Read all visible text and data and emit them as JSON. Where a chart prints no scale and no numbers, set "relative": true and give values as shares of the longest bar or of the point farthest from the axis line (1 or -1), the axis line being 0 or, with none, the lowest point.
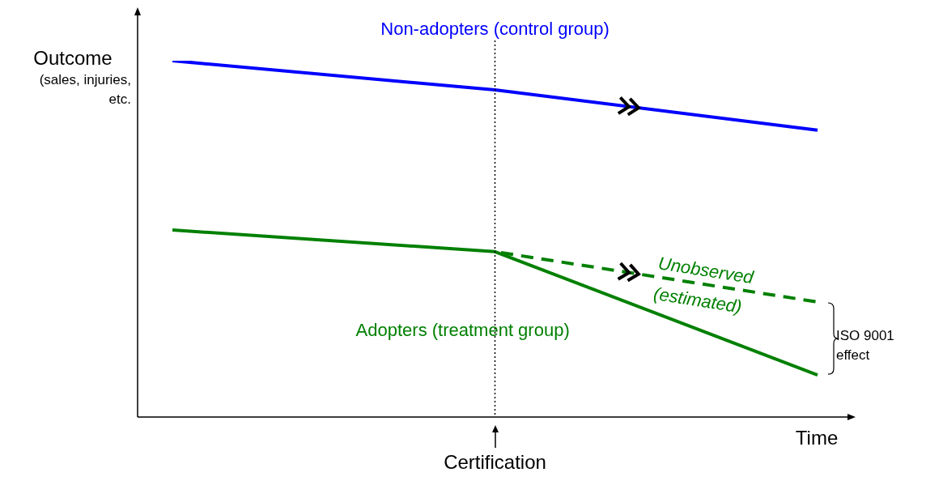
{
  "chart_data": {
    "type": "line",
    "relative": true,
    "xlabel": "Time",
    "ylabel": "Outcome\n(sales, injuries,\netc.",
    "legend": false,
    "marker": "none",
    "categories": [
      null,
      null,
      null
    ],
    "series": [
      {
        "name": "Non-adopters (control group)",
        "color": "#0000ff",
        "values": [
          1,
          0.918,
          0.805
        ]
      },
      {
        "name": "Adopters (treatment group)",
        "color": "#008000",
        "values": [
          0.525,
          0.464,
          0.118
        ]
      },
      {
        "name": "Unobserved (estimated)",
        "color": "#008000",
        "values": [
          null,
          0.464,
          0.323
        ],
        "line_style": "dashed"
      }
    ],
    "ref_lines": [
      {
        "axis": "x",
        "value": "Certification",
        "line_style": "dotted",
        "color": "#000000"
      }
    ],
    "annotations": [
      "ISO 9001 effect"
    ]
  }
}
